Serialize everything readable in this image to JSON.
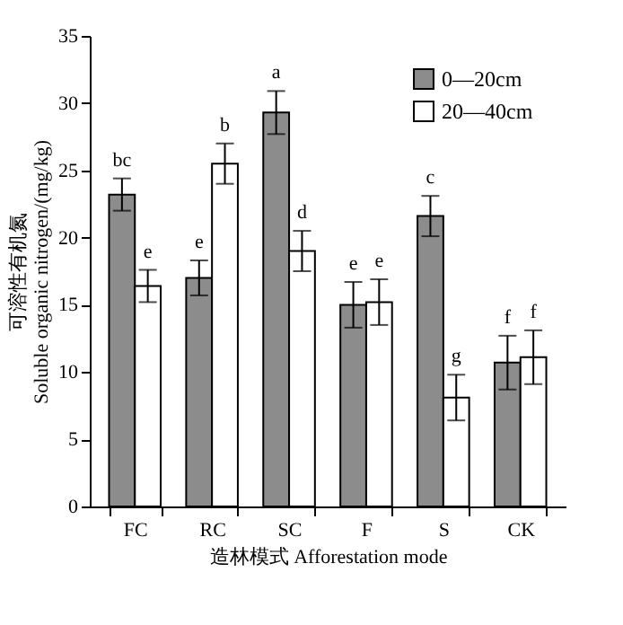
{
  "chart_data": {
    "type": "bar",
    "xlabel": "造林模式 Afforestation mode",
    "ylabel": "可溶性有机氮\nSoluble organic nitrogen/(mg/kg)",
    "categories": [
      "FC",
      "RC",
      "SC",
      "F",
      "S",
      "CK"
    ],
    "series": [
      {
        "name": "0—20cm",
        "color": "#8c8c8c",
        "values": [
          23.2,
          17.0,
          29.3,
          15.0,
          21.6,
          10.7
        ],
        "errors": [
          1.2,
          1.3,
          1.6,
          1.7,
          1.5,
          2.0
        ]
      },
      {
        "name": "20—40cm",
        "color": "#ffffff",
        "values": [
          16.4,
          25.5,
          19.0,
          15.2,
          8.1,
          11.1
        ],
        "errors": [
          1.2,
          1.5,
          1.5,
          1.7,
          1.7,
          2.0
        ]
      }
    ],
    "annotations": [
      "bc",
      "e",
      "e",
      "b",
      "a",
      "d",
      "e",
      "e",
      "c",
      "g",
      "f",
      "f"
    ],
    "ylim": [
      0,
      35
    ],
    "yticks": [
      0,
      5,
      10,
      15,
      20,
      25,
      30,
      35
    ],
    "grid": false,
    "legend": "top right"
  }
}
